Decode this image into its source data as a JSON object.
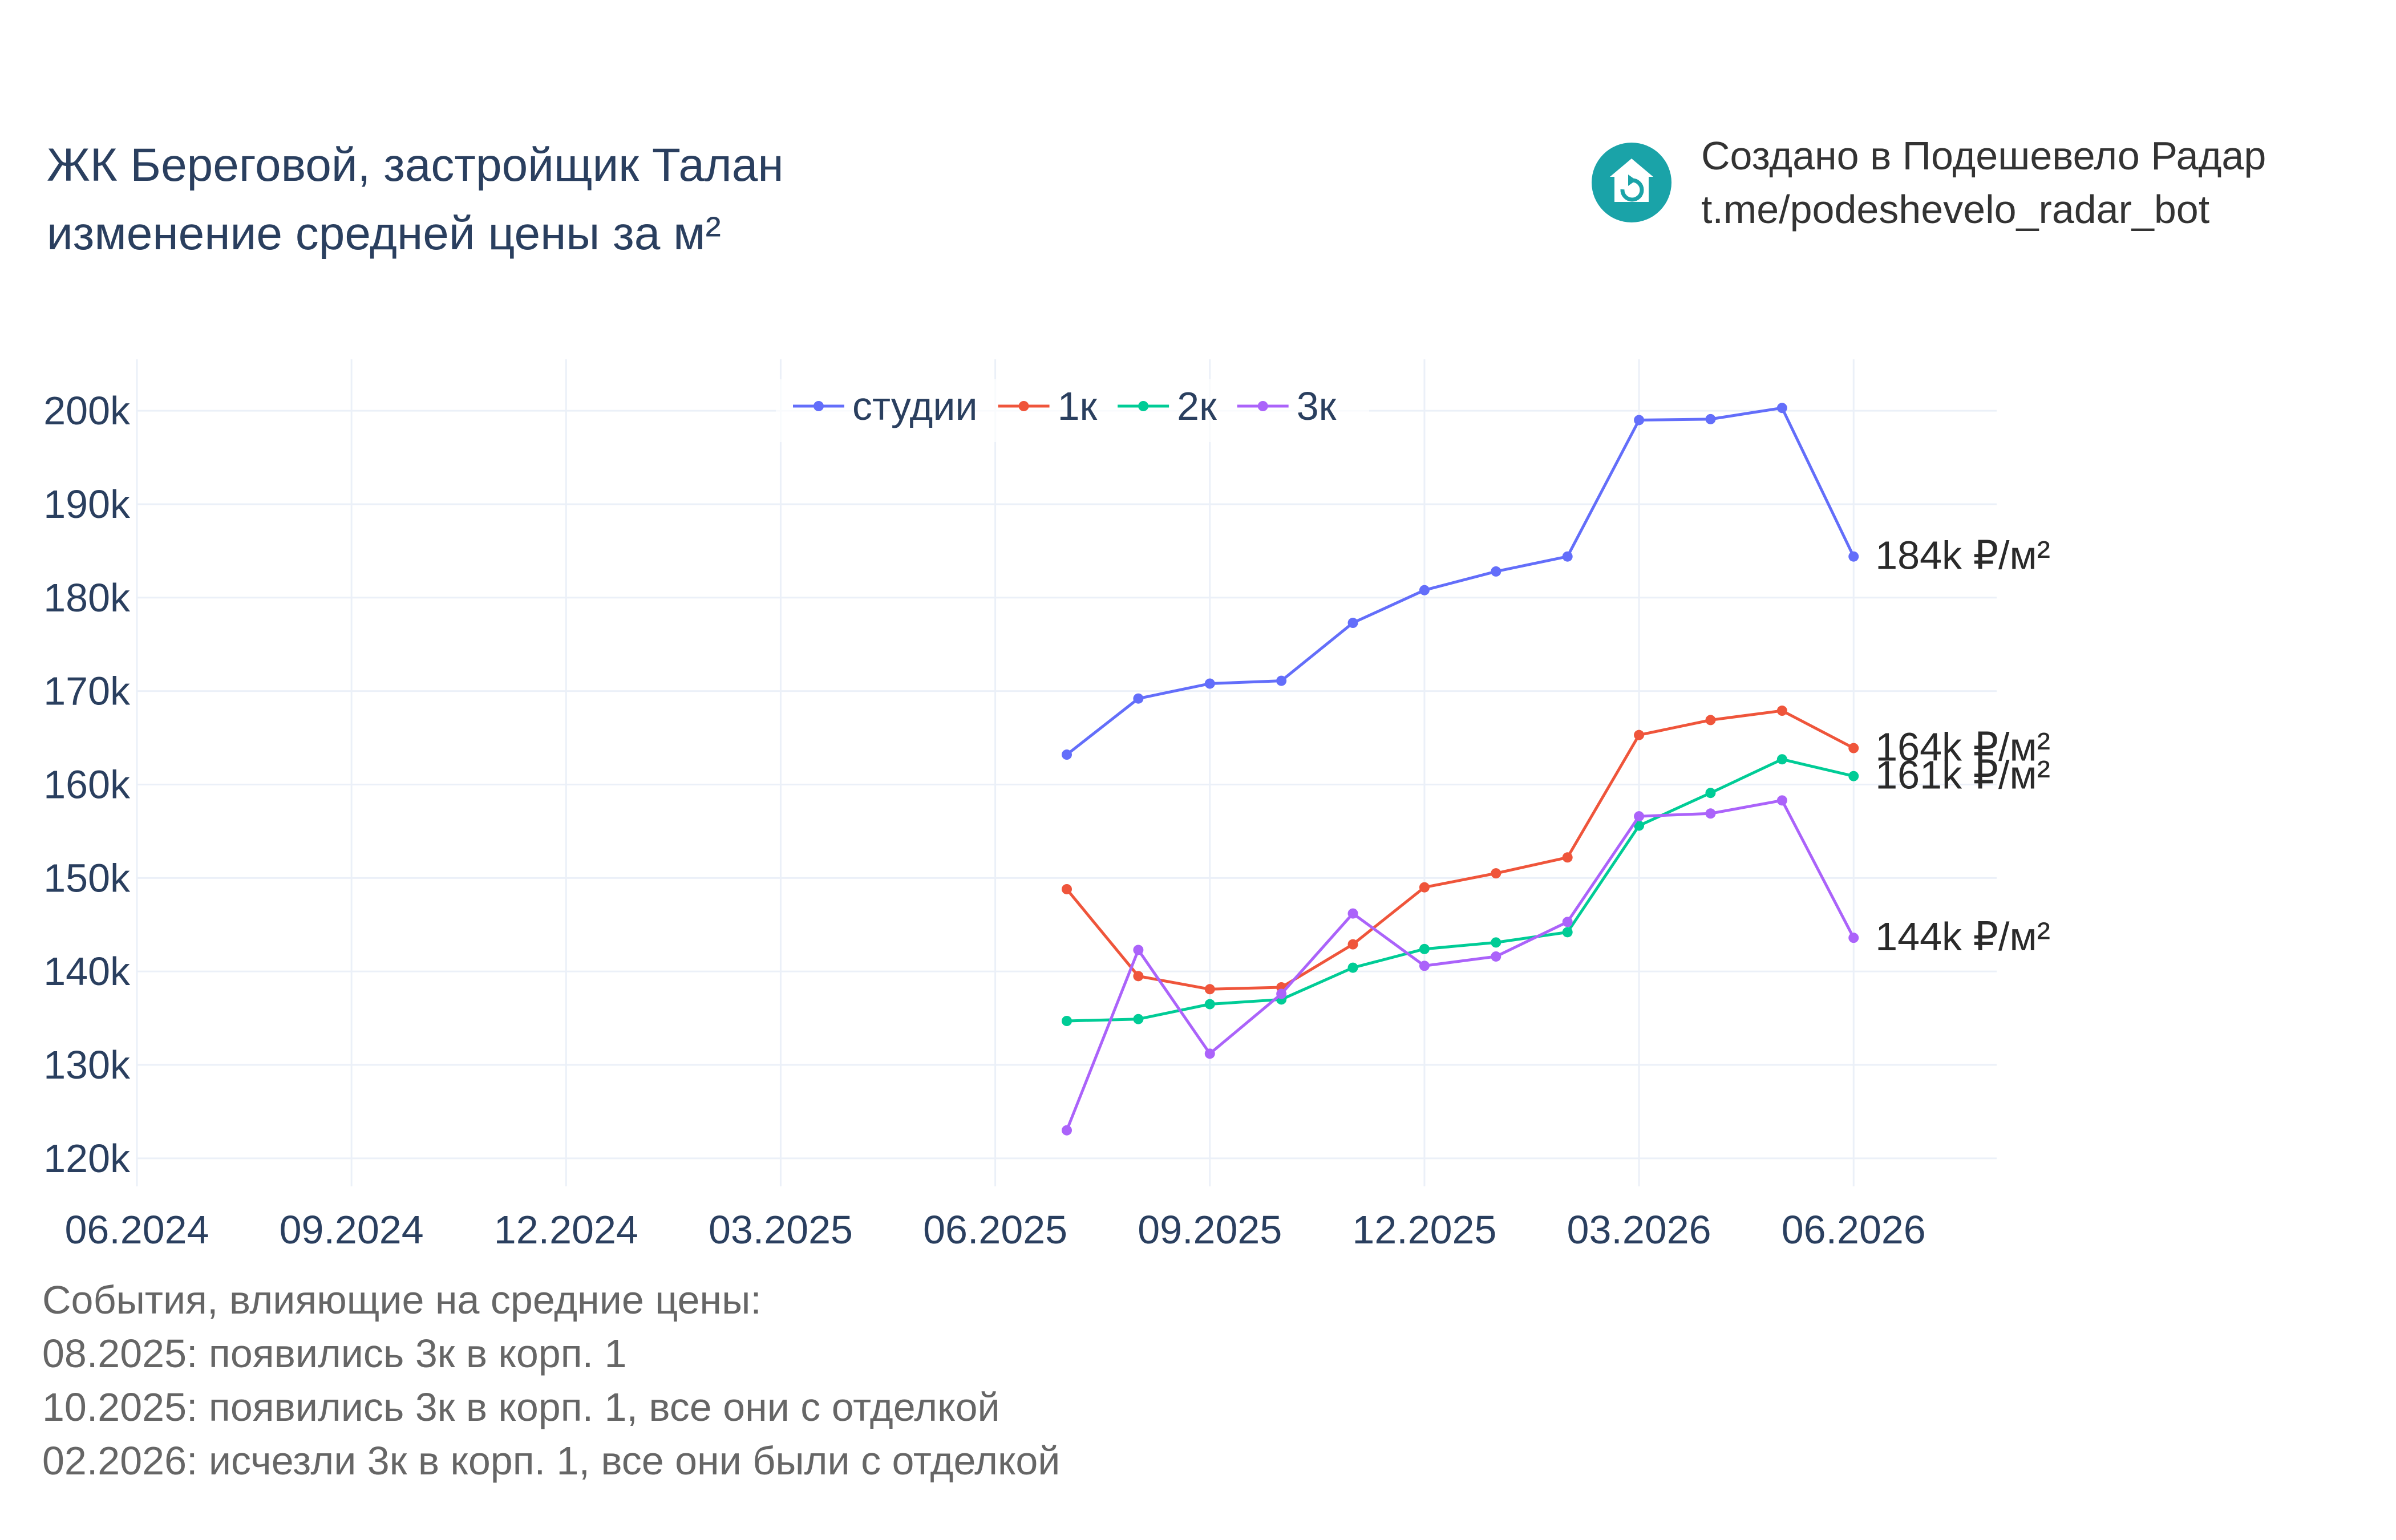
{
  "title": {
    "line1": "ЖК Береговой, застройщик Талан",
    "line2": "изменение средней цены за м²"
  },
  "brand": {
    "line1": "Создано в Подешевело Радар",
    "line2": "t.me/podeshevelo_radar_bot",
    "logo_icon": "house-refresh-icon",
    "logo_color": "#1aa3a8"
  },
  "events": {
    "heading": "События, влияющие на средние цены:",
    "items": [
      "08.2025: появились 3к в корп. 1",
      "10.2025: появились 3к в корп. 1, все они с отделкой",
      "02.2026: исчезли 3к в корп. 1, все они были с отделкой"
    ]
  },
  "chart_data": {
    "type": "line",
    "x": [
      "07.2025",
      "08.2025",
      "09.2025",
      "10.2025",
      "11.2025",
      "12.2025",
      "01.2026",
      "02.2026",
      "03.2026",
      "04.2026",
      "05.2026",
      "06.2026"
    ],
    "xlim": [
      "06.2024",
      "08.2026"
    ],
    "x_ticks": [
      "06.2024",
      "09.2024",
      "12.2024",
      "03.2025",
      "06.2025",
      "09.2025",
      "12.2025",
      "03.2026",
      "06.2026"
    ],
    "ylim": [
      117000,
      205500
    ],
    "y_ticks": [
      120000,
      130000,
      140000,
      150000,
      160000,
      170000,
      180000,
      190000,
      200000
    ],
    "y_tick_labels": [
      "120k",
      "130k",
      "140k",
      "150k",
      "160k",
      "170k",
      "180k",
      "190k",
      "200k"
    ],
    "grid": true,
    "legend_position": "top-center",
    "series": [
      {
        "name": "студии",
        "color": "#636efa",
        "end_label": "184k ₽/м²",
        "values": [
          163200,
          169200,
          170800,
          171100,
          177300,
          180800,
          182800,
          184400,
          199000,
          199100,
          200300,
          184400
        ]
      },
      {
        "name": "1к",
        "color": "#ef553b",
        "end_label": "164k ₽/м²",
        "values": [
          148800,
          139500,
          138100,
          138300,
          142900,
          149000,
          150500,
          152200,
          165300,
          166900,
          167900,
          163900
        ]
      },
      {
        "name": "2к",
        "color": "#00cc96",
        "end_label": "161k ₽/м²",
        "values": [
          134700,
          134900,
          136500,
          137000,
          140400,
          142400,
          143100,
          144200,
          155600,
          159100,
          162700,
          160900
        ]
      },
      {
        "name": "3к",
        "color": "#ab63fa",
        "end_label": "144k ₽/м²",
        "values": [
          123000,
          142300,
          131200,
          137600,
          146200,
          140600,
          141600,
          145300,
          156600,
          156900,
          158300,
          143600
        ]
      }
    ]
  }
}
